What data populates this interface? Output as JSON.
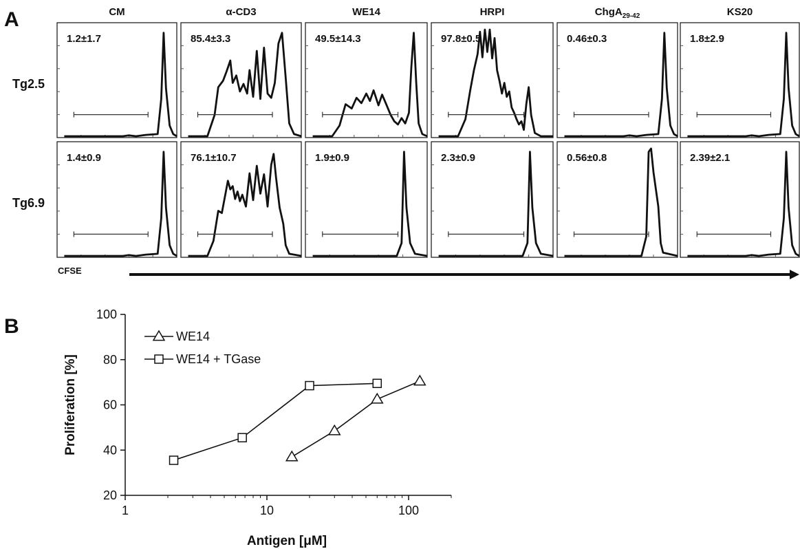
{
  "panel_a": {
    "letter": "A",
    "x_axis_label": "CFSE",
    "columns": [
      {
        "label": "CM"
      },
      {
        "label": "α-CD3"
      },
      {
        "label": "WE14"
      },
      {
        "label": "HRPI"
      },
      {
        "label": "ChgA",
        "sub": "29-42"
      },
      {
        "label": "KS20"
      }
    ],
    "rows": [
      {
        "label": "Tg2.5",
        "stats": [
          "1.2±1.7",
          "85.4±3.3",
          "49.5±14.3",
          "97.8±0.5",
          "0.46±0.3",
          "1.8±2.9"
        ]
      },
      {
        "label": "Tg6.9",
        "stats": [
          "1.4±0.9",
          "76.1±10.7",
          "1.9±0.9",
          "2.3±0.9",
          "0.56±0.8",
          "2.39±2.1"
        ]
      }
    ]
  },
  "panel_b": {
    "letter": "B"
  },
  "chart_data": {
    "type": "line",
    "x_scale": "log",
    "xlabel": "Antigen [μM]",
    "ylabel": "Proliferation [%]",
    "xlim": [
      1,
      200
    ],
    "ylim": [
      20,
      100
    ],
    "x_ticks": [
      1,
      10,
      100
    ],
    "x_tick_labels": [
      "1",
      "10",
      "100"
    ],
    "y_ticks": [
      20,
      40,
      60,
      80,
      100
    ],
    "y_tick_labels": [
      "20",
      "40",
      "60",
      "80",
      "100"
    ],
    "legend_position": "top-left",
    "series": [
      {
        "name": "WE14",
        "marker": "triangle",
        "x": [
          15,
          30,
          60,
          120
        ],
        "y": [
          37,
          48.5,
          62.5,
          70.5
        ]
      },
      {
        "name": "WE14 + TGase",
        "marker": "square",
        "x": [
          2.2,
          6.7,
          20,
          60
        ],
        "y": [
          35.5,
          45.5,
          68.5,
          69.5
        ]
      }
    ]
  }
}
